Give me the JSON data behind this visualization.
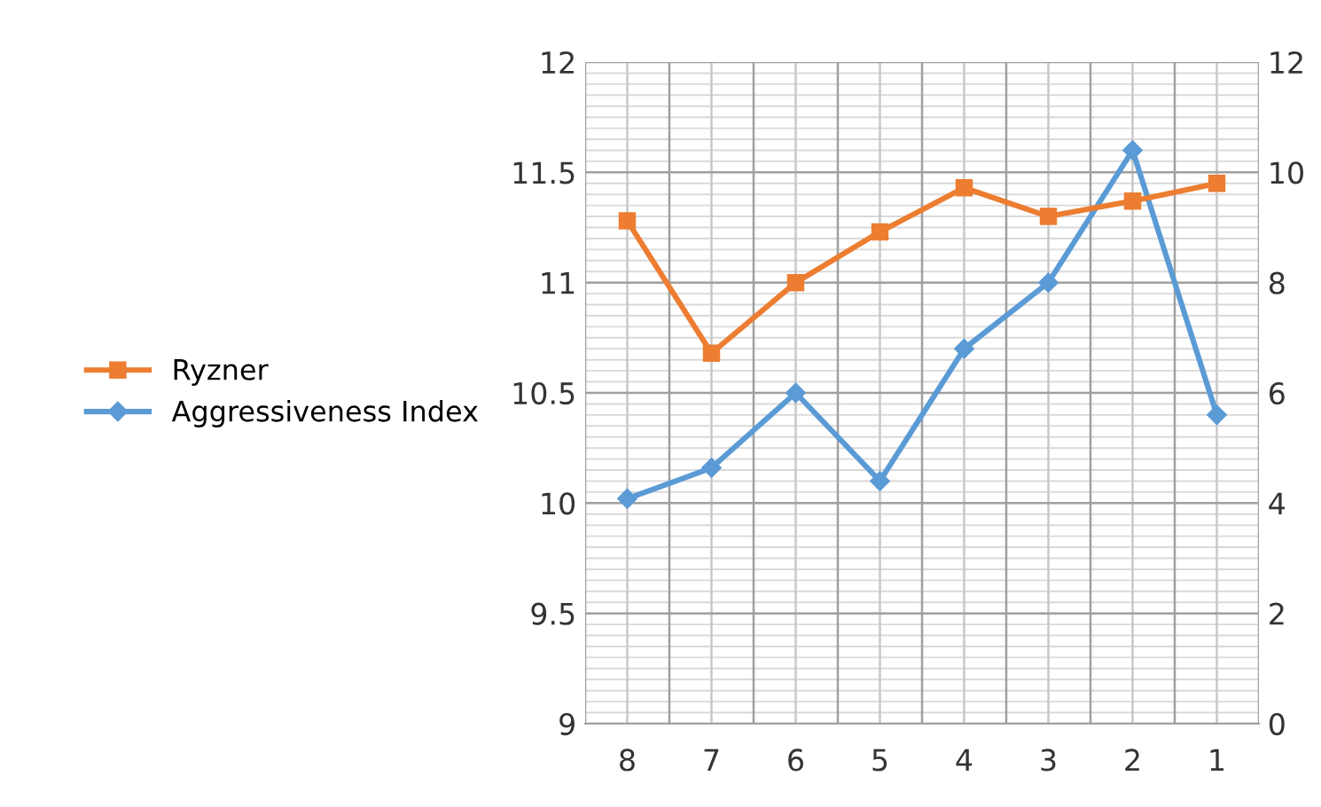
{
  "chart_data": {
    "type": "line",
    "categories": [
      "8",
      "7",
      "6",
      "5",
      "4",
      "3",
      "2",
      "1"
    ],
    "series": [
      {
        "name": "Ryzner",
        "color": "#ed7d31",
        "axis": "y2",
        "marker": "square",
        "values": [
          9.12,
          6.72,
          8.0,
          8.92,
          9.72,
          9.2,
          9.48,
          9.8
        ]
      },
      {
        "name": "Aggressiveness Index",
        "color": "#5b9bd5",
        "marker": "diamond",
        "values": [
          10.02,
          10.16,
          10.5,
          10.1,
          10.7,
          11.0,
          11.6,
          10.4
        ]
      }
    ],
    "ylim": [
      9,
      12
    ],
    "yticks": [
      9,
      9.5,
      10,
      10.5,
      11,
      11.5,
      12
    ],
    "y2lim": [
      0,
      12
    ],
    "y2ticks": [
      0,
      2,
      4,
      6,
      8,
      10,
      12
    ],
    "grid": true,
    "legend": "left",
    "line_style": "solid"
  }
}
